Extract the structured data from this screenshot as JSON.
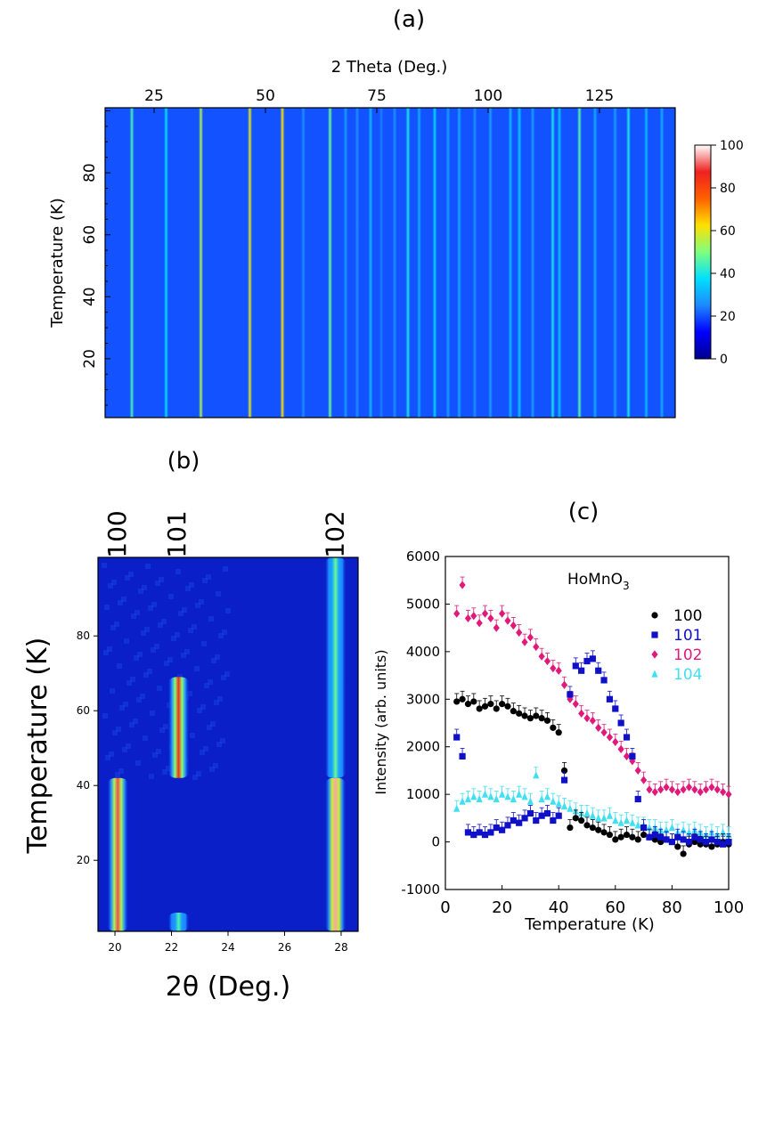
{
  "panels": {
    "a": {
      "label": "(a)"
    },
    "b": {
      "label": "(b)"
    },
    "c": {
      "label": "(c)"
    }
  },
  "colors": {
    "cmap": [
      "#00008f",
      "#0000ff",
      "#1e88ff",
      "#00e0ff",
      "#7fff7f",
      "#ffe000",
      "#ff6000",
      "#ef2020",
      "#ffffff"
    ],
    "s100": "#000000",
    "s101": "#1010c8",
    "s102": "#e0197a",
    "s104": "#40e0f0",
    "bg_cold": "#0a1fc8"
  },
  "chart_data": [
    {
      "id": "a",
      "type": "heatmap",
      "title": "",
      "xlabel": "2 Theta (Deg.)",
      "ylabel": "Temperature (K)",
      "xlim": [
        14,
        142
      ],
      "ylim": [
        1,
        101
      ],
      "xticks": [
        25,
        50,
        75,
        100,
        125
      ],
      "yticks": [
        20,
        40,
        60,
        80
      ],
      "colorbar": {
        "min": 0,
        "max": 100,
        "ticks": [
          0,
          20,
          40,
          60,
          80,
          100
        ]
      },
      "background": 20,
      "peaks": [
        {
          "x": 20.0,
          "v": 45
        },
        {
          "x": 27.7,
          "v": 38
        },
        {
          "x": 35.5,
          "v": 55
        },
        {
          "x": 46.5,
          "v": 60
        },
        {
          "x": 53.8,
          "v": 62
        },
        {
          "x": 58.5,
          "v": 26
        },
        {
          "x": 64.5,
          "v": 48
        },
        {
          "x": 68.0,
          "v": 28
        },
        {
          "x": 70.6,
          "v": 26
        },
        {
          "x": 73.6,
          "v": 32
        },
        {
          "x": 76.0,
          "v": 24
        },
        {
          "x": 79.0,
          "v": 26
        },
        {
          "x": 82.0,
          "v": 40
        },
        {
          "x": 84.5,
          "v": 30
        },
        {
          "x": 88.0,
          "v": 36
        },
        {
          "x": 91.0,
          "v": 28
        },
        {
          "x": 93.5,
          "v": 30
        },
        {
          "x": 97.0,
          "v": 26
        },
        {
          "x": 100.5,
          "v": 28
        },
        {
          "x": 105.0,
          "v": 32
        },
        {
          "x": 107.0,
          "v": 34
        },
        {
          "x": 110.0,
          "v": 28
        },
        {
          "x": 114.5,
          "v": 40
        },
        {
          "x": 116.0,
          "v": 34
        },
        {
          "x": 120.5,
          "v": 46
        },
        {
          "x": 124.0,
          "v": 30
        },
        {
          "x": 128.5,
          "v": 28
        },
        {
          "x": 131.5,
          "v": 40
        },
        {
          "x": 135.5,
          "v": 32
        },
        {
          "x": 139.0,
          "v": 30
        }
      ]
    },
    {
      "id": "b",
      "type": "heatmap",
      "title": "",
      "xlabel": "2θ (Deg.)",
      "ylabel": "Temperature (K)",
      "xlim": [
        19.4,
        28.6
      ],
      "ylim": [
        1,
        101
      ],
      "xticks": [
        20,
        22,
        24,
        26,
        28
      ],
      "yticks": [
        20,
        40,
        60,
        80
      ],
      "peak_labels": [
        {
          "text": "100",
          "x": 20.1
        },
        {
          "text": "101",
          "x": 22.2
        },
        {
          "text": "102",
          "x": 27.8
        }
      ],
      "regions": [
        {
          "x": 20.1,
          "t_lo": 1,
          "t_hi": 42,
          "v": 90
        },
        {
          "x": 22.25,
          "t_lo": 42,
          "t_hi": 69,
          "v": 85
        },
        {
          "x": 22.25,
          "t_lo": 1,
          "t_hi": 6,
          "v": 45
        },
        {
          "x": 27.8,
          "t_lo": 1,
          "t_hi": 42,
          "v": 95
        },
        {
          "x": 27.8,
          "t_lo": 42,
          "t_hi": 101,
          "v": 48
        }
      ]
    },
    {
      "id": "c",
      "type": "scatter",
      "title": "",
      "annotation": "HoMnO",
      "annotation_sub": "3",
      "xlabel": "Temperature (K)",
      "ylabel": "Intensity (arb. units)",
      "xlim": [
        0,
        100
      ],
      "ylim": [
        -1000,
        6000
      ],
      "xticks": [
        0,
        20,
        40,
        60,
        80,
        100
      ],
      "yticks": [
        -1000,
        0,
        1000,
        2000,
        3000,
        4000,
        5000,
        6000
      ],
      "series": [
        {
          "name": "100",
          "marker": "circle",
          "x": [
            4,
            6,
            8,
            10,
            12,
            14,
            16,
            18,
            20,
            22,
            24,
            26,
            28,
            30,
            32,
            34,
            36,
            38,
            40,
            42,
            44,
            46,
            48,
            50,
            52,
            54,
            56,
            58,
            60,
            62,
            64,
            66,
            68,
            70,
            72,
            74,
            76,
            78,
            80,
            82,
            84,
            86,
            88,
            90,
            92,
            94,
            96,
            98,
            100
          ],
          "y": [
            2950,
            3000,
            2900,
            2950,
            2800,
            2850,
            2900,
            2800,
            2900,
            2850,
            2750,
            2700,
            2650,
            2600,
            2650,
            2600,
            2550,
            2400,
            2300,
            1500,
            300,
            500,
            450,
            350,
            300,
            250,
            200,
            150,
            50,
            100,
            150,
            100,
            50,
            150,
            100,
            50,
            0,
            50,
            0,
            -100,
            -250,
            -50,
            0,
            -50,
            -50,
            -100,
            -50,
            0,
            -50
          ]
        },
        {
          "name": "101",
          "marker": "square",
          "x": [
            4,
            6,
            8,
            10,
            12,
            14,
            16,
            18,
            20,
            22,
            24,
            26,
            28,
            30,
            32,
            34,
            36,
            38,
            40,
            42,
            44,
            46,
            48,
            50,
            52,
            54,
            56,
            58,
            60,
            62,
            64,
            66,
            68,
            70,
            72,
            74,
            76,
            78,
            80,
            82,
            84,
            86,
            88,
            90,
            92,
            94,
            96,
            98,
            100
          ],
          "y": [
            2200,
            1800,
            200,
            150,
            200,
            150,
            200,
            300,
            250,
            350,
            450,
            400,
            500,
            600,
            450,
            550,
            600,
            450,
            550,
            1300,
            3100,
            3700,
            3600,
            3800,
            3850,
            3600,
            3400,
            3000,
            2800,
            2500,
            2200,
            1800,
            900,
            300,
            100,
            150,
            100,
            50,
            0,
            100,
            50,
            0,
            100,
            50,
            0,
            50,
            0,
            -50,
            0
          ]
        },
        {
          "name": "102",
          "marker": "diamond",
          "x": [
            4,
            6,
            8,
            10,
            12,
            14,
            16,
            18,
            20,
            22,
            24,
            26,
            28,
            30,
            32,
            34,
            36,
            38,
            40,
            42,
            44,
            46,
            48,
            50,
            52,
            54,
            56,
            58,
            60,
            62,
            64,
            66,
            68,
            70,
            72,
            74,
            76,
            78,
            80,
            82,
            84,
            86,
            88,
            90,
            92,
            94,
            96,
            98,
            100
          ],
          "y": [
            4800,
            5400,
            4700,
            4750,
            4600,
            4800,
            4700,
            4500,
            4800,
            4650,
            4550,
            4400,
            4200,
            4300,
            4100,
            3900,
            3800,
            3650,
            3600,
            3300,
            3000,
            2900,
            2700,
            2600,
            2550,
            2400,
            2300,
            2200,
            2100,
            1950,
            1800,
            1700,
            1500,
            1300,
            1100,
            1050,
            1100,
            1150,
            1100,
            1050,
            1100,
            1150,
            1100,
            1050,
            1100,
            1150,
            1100,
            1050,
            1000
          ]
        },
        {
          "name": "104",
          "marker": "triangle",
          "x": [
            4,
            6,
            8,
            10,
            12,
            14,
            16,
            18,
            20,
            22,
            24,
            26,
            28,
            30,
            32,
            34,
            36,
            38,
            40,
            42,
            44,
            46,
            48,
            50,
            52,
            54,
            56,
            58,
            60,
            62,
            64,
            66,
            68,
            70,
            72,
            74,
            76,
            78,
            80,
            82,
            84,
            86,
            88,
            90,
            92,
            94,
            96,
            98,
            100
          ],
          "y": [
            700,
            850,
            900,
            950,
            900,
            1000,
            950,
            900,
            1000,
            950,
            900,
            1000,
            950,
            850,
            1400,
            900,
            950,
            850,
            800,
            750,
            700,
            650,
            600,
            600,
            550,
            500,
            500,
            550,
            450,
            400,
            450,
            400,
            350,
            350,
            300,
            300,
            250,
            250,
            300,
            200,
            250,
            200,
            250,
            200,
            150,
            200,
            150,
            200,
            150
          ]
        }
      ]
    }
  ]
}
